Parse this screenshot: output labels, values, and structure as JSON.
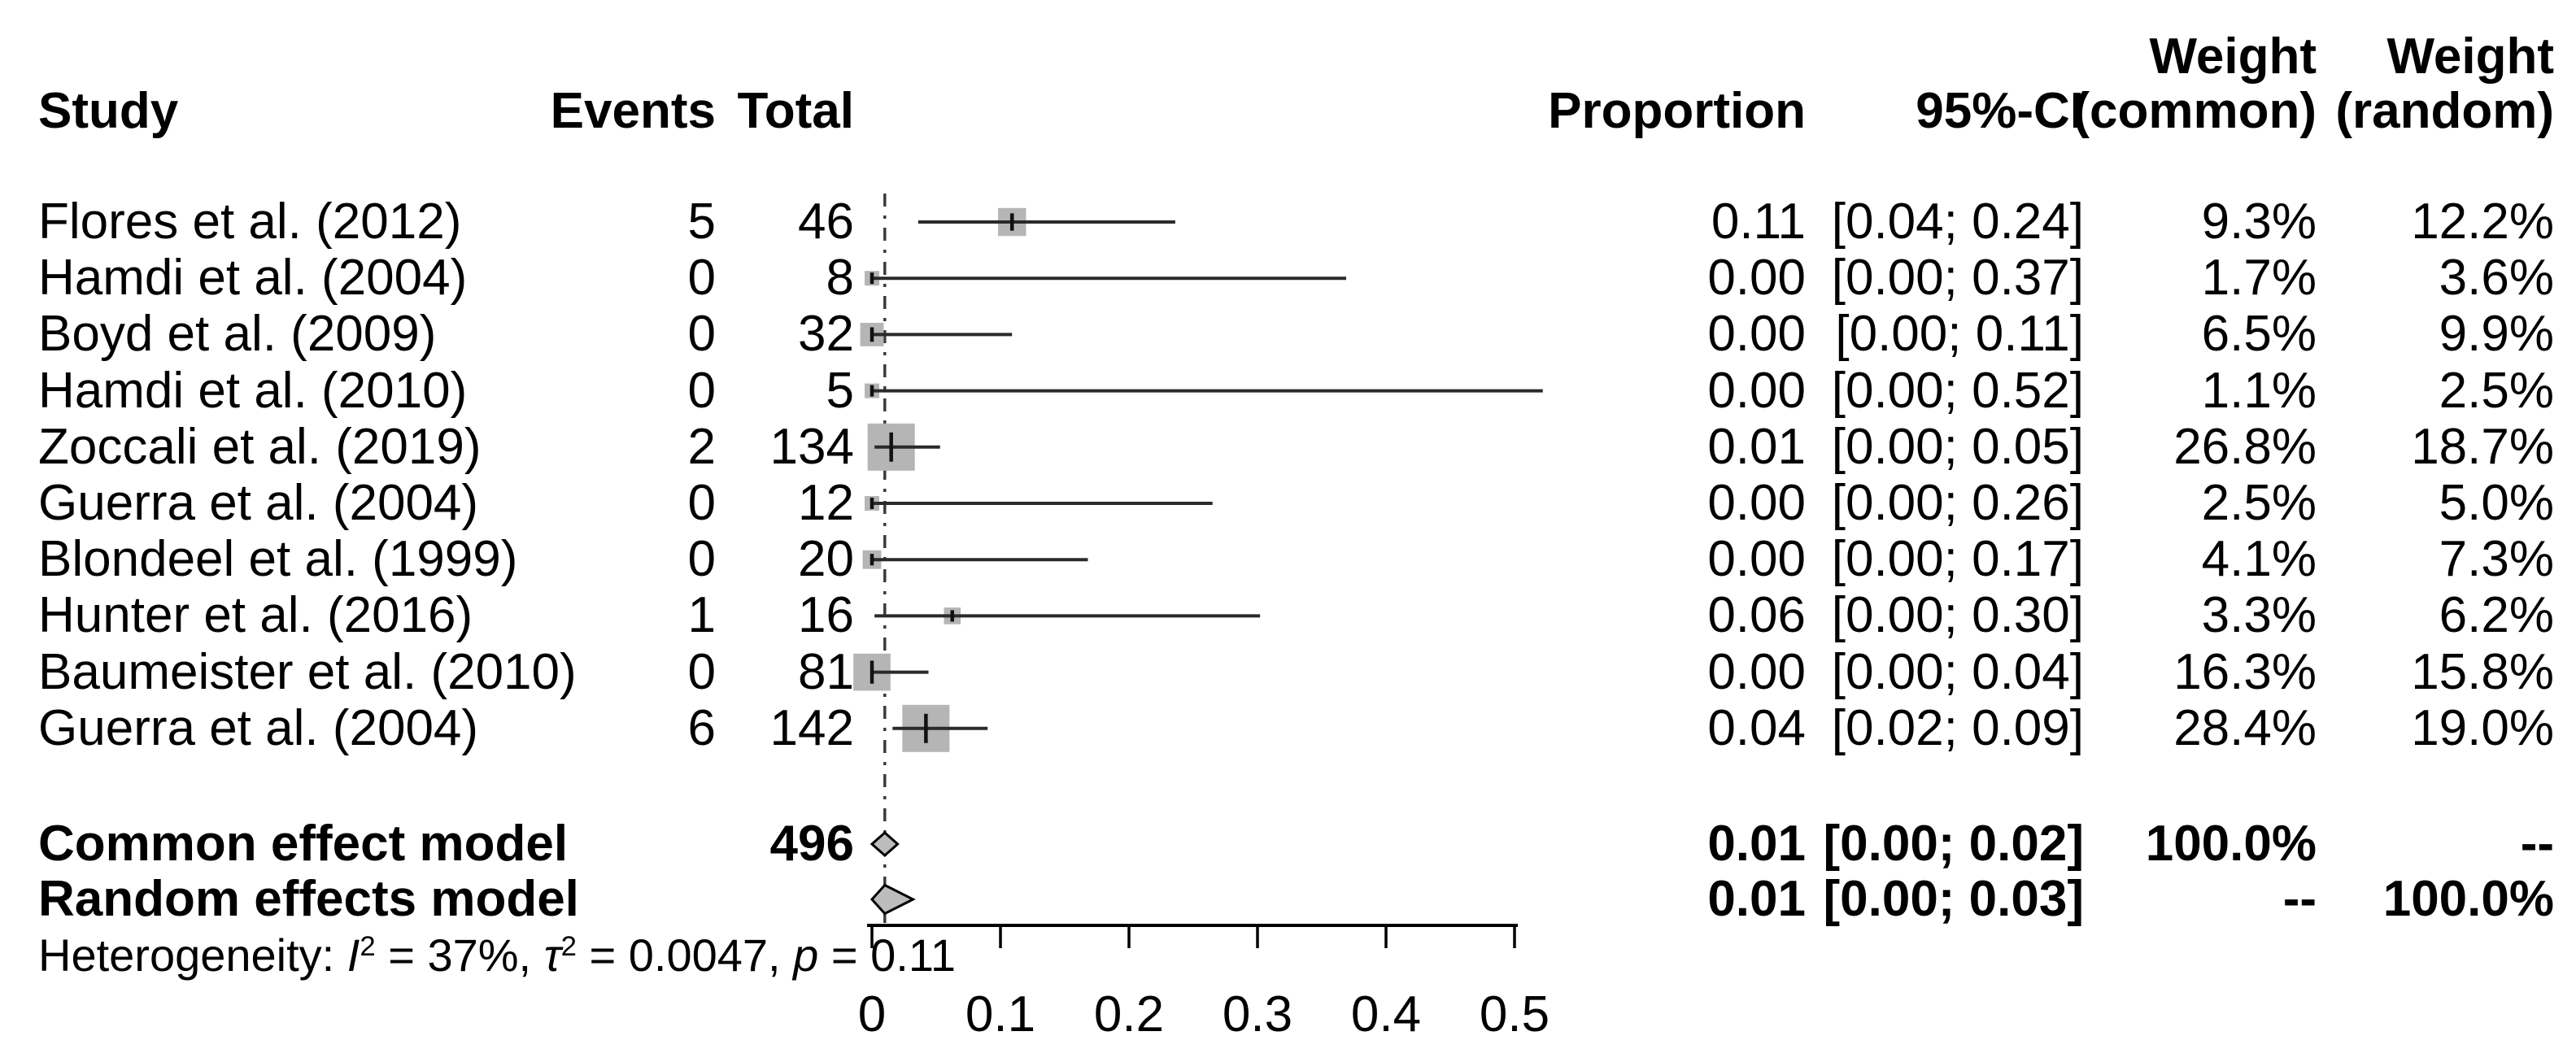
{
  "table": {
    "headers": {
      "study": "Study",
      "events": "Events",
      "total": "Total",
      "proportion": "Proportion",
      "ci": "95%-CI",
      "weight_common_line1": "Weight",
      "weight_common_line2": "(common)",
      "weight_random_line1": "Weight",
      "weight_random_line2": "(random)"
    },
    "studies": [
      {
        "name": "Flores et al. (2012)",
        "events": "5",
        "total": "46",
        "proportion": "0.11",
        "ci": "[0.04; 0.24]",
        "w_common": "9.3%",
        "w_random": "12.2%"
      },
      {
        "name": "Hamdi et al. (2004)",
        "events": "0",
        "total": "8",
        "proportion": "0.00",
        "ci": "[0.00; 0.37]",
        "w_common": "1.7%",
        "w_random": "3.6%"
      },
      {
        "name": "Boyd et al. (2009)",
        "events": "0",
        "total": "32",
        "proportion": "0.00",
        "ci": "[0.00; 0.11]",
        "w_common": "6.5%",
        "w_random": "9.9%"
      },
      {
        "name": "Hamdi et al. (2010)",
        "events": "0",
        "total": "5",
        "proportion": "0.00",
        "ci": "[0.00; 0.52]",
        "w_common": "1.1%",
        "w_random": "2.5%"
      },
      {
        "name": "Zoccali et al. (2019)",
        "events": "2",
        "total": "134",
        "proportion": "0.01",
        "ci": "[0.00; 0.05]",
        "w_common": "26.8%",
        "w_random": "18.7%"
      },
      {
        "name": "Guerra et al. (2004)",
        "events": "0",
        "total": "12",
        "proportion": "0.00",
        "ci": "[0.00; 0.26]",
        "w_common": "2.5%",
        "w_random": "5.0%"
      },
      {
        "name": "Blondeel et al. (1999)",
        "events": "0",
        "total": "20",
        "proportion": "0.00",
        "ci": "[0.00; 0.17]",
        "w_common": "4.1%",
        "w_random": "7.3%"
      },
      {
        "name": "Hunter et al. (2016)",
        "events": "1",
        "total": "16",
        "proportion": "0.06",
        "ci": "[0.00; 0.30]",
        "w_common": "3.3%",
        "w_random": "6.2%"
      },
      {
        "name": "Baumeister et al. (2010)",
        "events": "0",
        "total": "81",
        "proportion": "0.00",
        "ci": "[0.00; 0.04]",
        "w_common": "16.3%",
        "w_random": "15.8%"
      },
      {
        "name": "Guerra et al. (2004)",
        "events": "6",
        "total": "142",
        "proportion": "0.04",
        "ci": "[0.02; 0.09]",
        "w_common": "28.4%",
        "w_random": "19.0%"
      }
    ],
    "summary": [
      {
        "name": "Common effect model",
        "total": "496",
        "proportion": "0.01",
        "ci": "[0.00; 0.02]",
        "w_common": "100.0%",
        "w_random": "--"
      },
      {
        "name": "Random effects model",
        "total": "",
        "proportion": "0.01",
        "ci": "[0.00; 0.03]",
        "w_common": "--",
        "w_random": "100.0%"
      }
    ],
    "heterogeneity": {
      "prefix": "Heterogeneity: ",
      "i_label": "I",
      "i_sup": "2",
      "i_val": " = 37%, ",
      "tau_label": "τ",
      "tau_sup": "2",
      "tau_val": " = 0.0047, ",
      "p_label": "p",
      "p_val": " = 0.11"
    }
  },
  "chart_data": {
    "type": "forest",
    "title": "Meta-analysis of proportions (forest plot)",
    "xlabel": "Proportion",
    "xlim": [
      0,
      0.55
    ],
    "x_ticks": [
      0,
      0.1,
      0.2,
      0.3,
      0.4,
      0.5
    ],
    "x_tick_labels": [
      "0",
      "0.1",
      "0.2",
      "0.3",
      "0.4",
      "0.5"
    ],
    "ref_line": 0.01,
    "studies": [
      {
        "name": "Flores et al. (2012)",
        "events": 5,
        "total": 46,
        "est": 0.109,
        "lo": 0.036,
        "hi": 0.236,
        "weight_common_pct": 9.3,
        "weight_random_pct": 12.2
      },
      {
        "name": "Hamdi et al. (2004)",
        "events": 0,
        "total": 8,
        "est": 0.0,
        "lo": 0.0,
        "hi": 0.369,
        "weight_common_pct": 1.7,
        "weight_random_pct": 3.6
      },
      {
        "name": "Boyd et al. (2009)",
        "events": 0,
        "total": 32,
        "est": 0.0,
        "lo": 0.0,
        "hi": 0.109,
        "weight_common_pct": 6.5,
        "weight_random_pct": 9.9
      },
      {
        "name": "Hamdi et al. (2010)",
        "events": 0,
        "total": 5,
        "est": 0.0,
        "lo": 0.0,
        "hi": 0.522,
        "weight_common_pct": 1.1,
        "weight_random_pct": 2.5
      },
      {
        "name": "Zoccali et al. (2019)",
        "events": 2,
        "total": 134,
        "est": 0.015,
        "lo": 0.002,
        "hi": 0.053,
        "weight_common_pct": 26.8,
        "weight_random_pct": 18.7
      },
      {
        "name": "Guerra et al. (2004)",
        "events": 0,
        "total": 12,
        "est": 0.0,
        "lo": 0.0,
        "hi": 0.265,
        "weight_common_pct": 2.5,
        "weight_random_pct": 5.0
      },
      {
        "name": "Blondeel et al. (1999)",
        "events": 0,
        "total": 20,
        "est": 0.0,
        "lo": 0.0,
        "hi": 0.168,
        "weight_common_pct": 4.1,
        "weight_random_pct": 7.3
      },
      {
        "name": "Hunter et al. (2016)",
        "events": 1,
        "total": 16,
        "est": 0.0625,
        "lo": 0.002,
        "hi": 0.302,
        "weight_common_pct": 3.3,
        "weight_random_pct": 6.2
      },
      {
        "name": "Baumeister et al. (2010)",
        "events": 0,
        "total": 81,
        "est": 0.0,
        "lo": 0.0,
        "hi": 0.044,
        "weight_common_pct": 16.3,
        "weight_random_pct": 15.8
      },
      {
        "name": "Guerra et al. (2004)",
        "events": 6,
        "total": 142,
        "est": 0.042,
        "lo": 0.016,
        "hi": 0.09,
        "weight_common_pct": 28.4,
        "weight_random_pct": 19.0
      }
    ],
    "common_effect": {
      "label": "Common effect model",
      "total": 496,
      "est": 0.01,
      "lo": 0.0,
      "hi": 0.02,
      "weight_common_pct": 100.0
    },
    "random_effects": {
      "label": "Random effects model",
      "est": 0.01,
      "lo": 0.0,
      "hi": 0.032,
      "weight_random_pct": 100.0
    },
    "heterogeneity": {
      "I2": "37%",
      "tau2": "0.0047",
      "p": "0.11"
    },
    "colors": {
      "square": "#b5b5b5",
      "ci_line": "#2a2a2a",
      "estimate_tick": "#111111",
      "diamond_fill": "#bcbcbc",
      "diamond_stroke": "#000000",
      "ref_line": "#3c3c3c",
      "axis": "#000000"
    },
    "legend_position": "none",
    "grid": false
  }
}
